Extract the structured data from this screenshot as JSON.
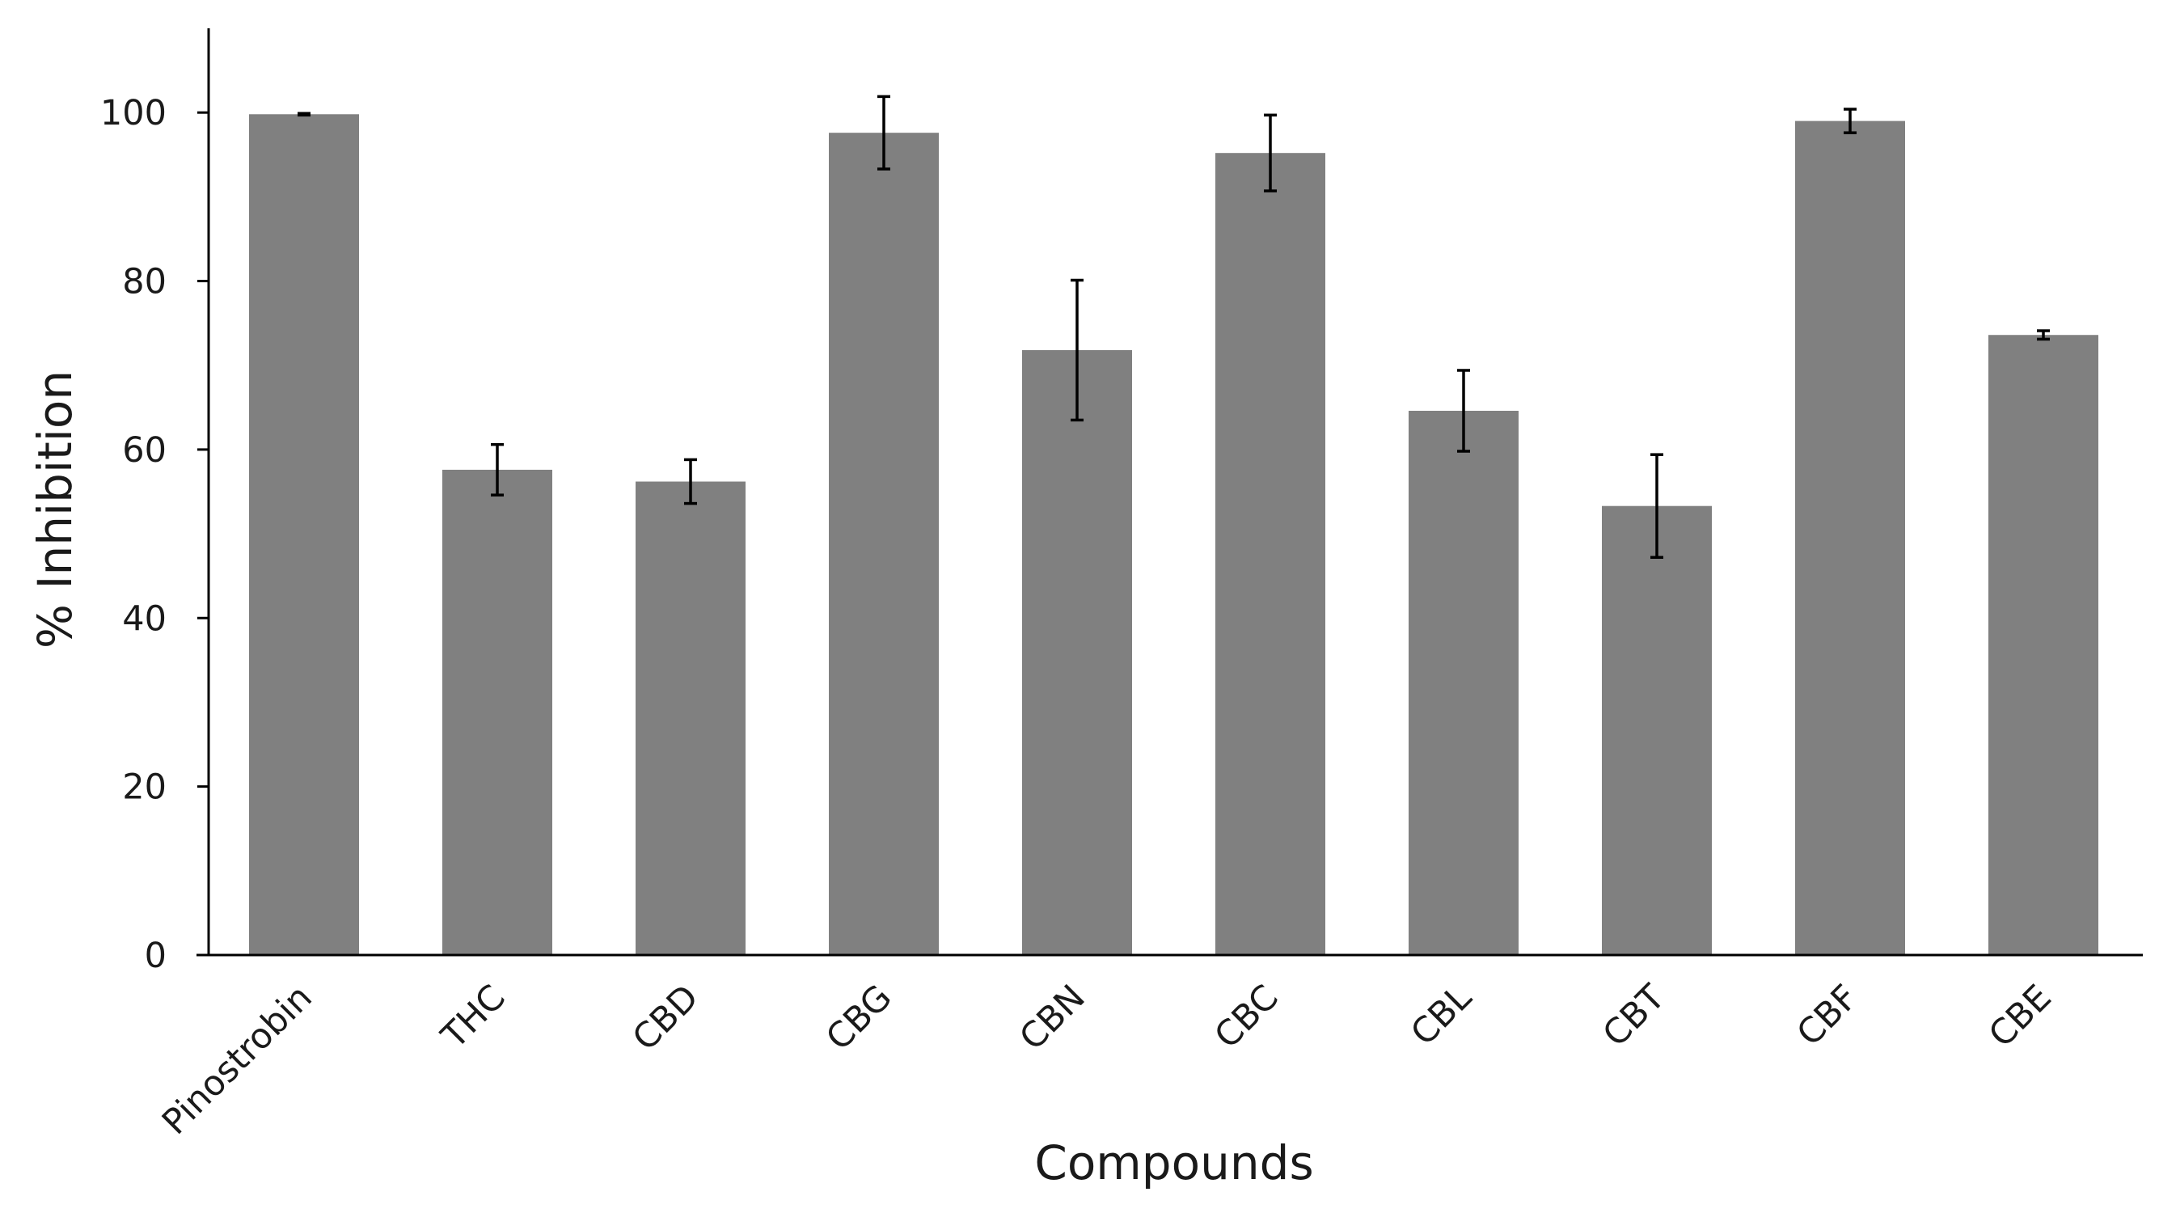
{
  "chart_data": {
    "type": "bar",
    "title": "",
    "xlabel": "Compounds",
    "ylabel": "% Inhibition",
    "ylim": [
      0,
      110
    ],
    "yticks": [
      0,
      20,
      40,
      60,
      80,
      100
    ],
    "grid": false,
    "legend": "none",
    "categories": [
      "Pinostrobin",
      "THC",
      "CBD",
      "CBG",
      "CBN",
      "CBC",
      "CBL",
      "CBT",
      "CBF",
      "CBE"
    ],
    "values": [
      99.8,
      57.6,
      56.2,
      97.6,
      71.8,
      95.2,
      64.6,
      53.3,
      99.0,
      73.6
    ],
    "error": [
      0.1,
      3.0,
      2.6,
      4.3,
      8.3,
      4.5,
      4.8,
      6.1,
      1.4,
      0.5
    ],
    "bar_color": "#808080",
    "axis_color": "#000000"
  }
}
